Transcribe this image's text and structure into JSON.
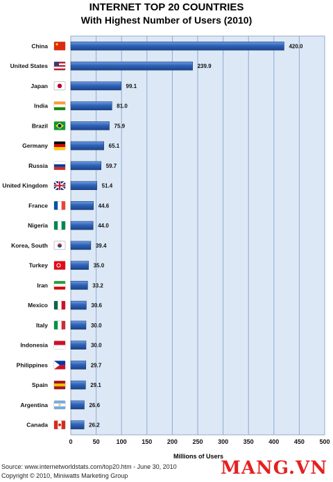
{
  "chart_data": {
    "type": "bar",
    "orientation": "horizontal",
    "title": "INTERNET TOP 20 COUNTRIES",
    "subtitle": "With Highest Number of Users (2010)",
    "xlabel": "Millions of Users",
    "ylabel": "",
    "xlim": [
      0,
      500
    ],
    "xticks": [
      0,
      50,
      100,
      150,
      200,
      250,
      300,
      350,
      400,
      450,
      500
    ],
    "grid": true,
    "categories": [
      "China",
      "United States",
      "Japan",
      "India",
      "Brazil",
      "Germany",
      "Russia",
      "United Kingdom",
      "France",
      "Nigeria",
      "Korea, South",
      "Turkey",
      "Iran",
      "Mexico",
      "Italy",
      "Indonesia",
      "Philippines",
      "Spain",
      "Argentina",
      "Canada"
    ],
    "values": [
      420.0,
      239.9,
      99.1,
      81.0,
      75.9,
      65.1,
      59.7,
      51.4,
      44.6,
      44.0,
      39.4,
      35.0,
      33.2,
      30.6,
      30.0,
      30.0,
      29.7,
      29.1,
      26.6,
      26.2
    ],
    "labels": [
      "420.0",
      "239.9",
      "99.1",
      "81.0",
      "75.9",
      "65.1",
      "59.7",
      "51.4",
      "44.6",
      "44.0",
      "39.4",
      "35.0",
      "33.2",
      "30.6",
      "30.0",
      "30.0",
      "29.7",
      "29.1",
      "26.6",
      "26.2"
    ],
    "bar_color": "#2f63b8",
    "plot_background": "#dce8f6"
  },
  "footer": {
    "source": "Source: www.internetworldstats.com/top20.htm - June 30, 2010",
    "copyright": "Copyright © 2010, Miniwatts Marketing Group"
  },
  "watermark": "MANG.VN"
}
